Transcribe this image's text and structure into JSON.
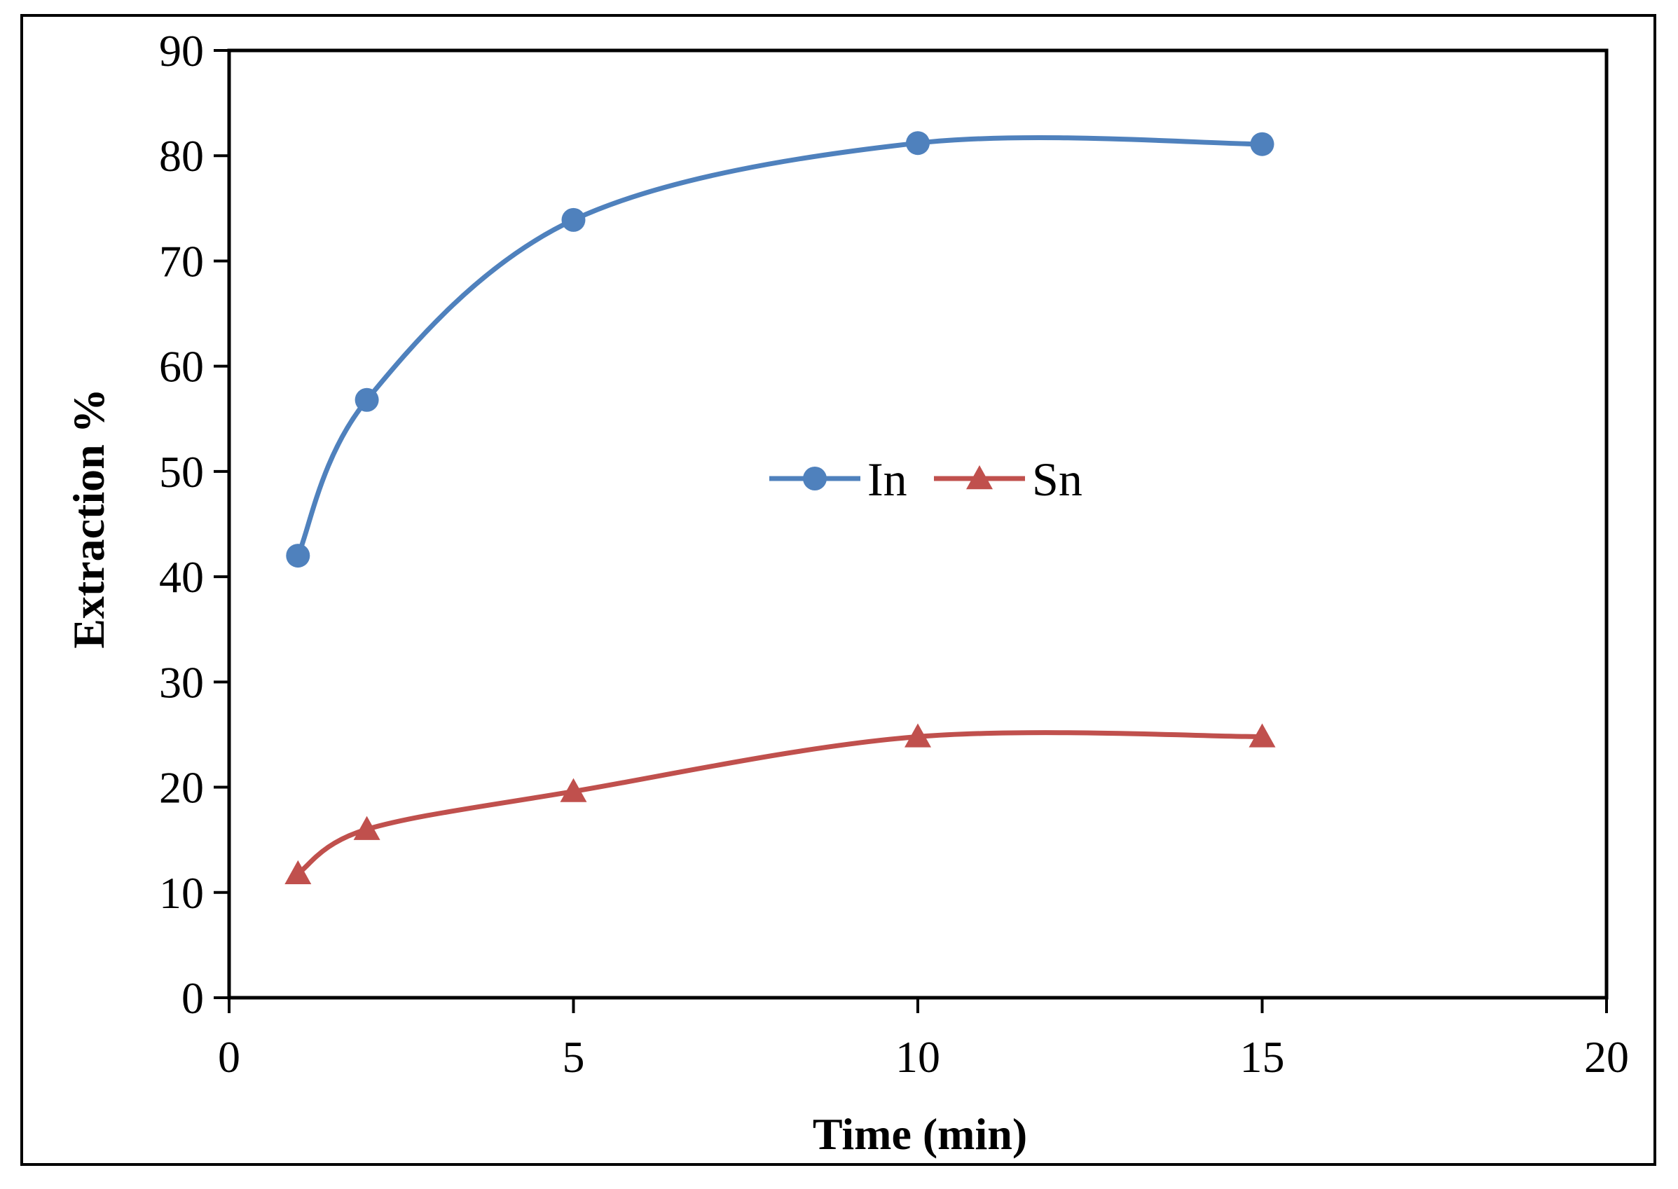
{
  "chart_data": {
    "type": "line",
    "title": "",
    "xlabel": "Time (min)",
    "ylabel": "Extraction %",
    "xlim": [
      0,
      20
    ],
    "ylim": [
      0,
      90
    ],
    "xticks": [
      0,
      5,
      10,
      15,
      20
    ],
    "yticks": [
      0,
      10,
      20,
      30,
      40,
      50,
      60,
      70,
      80,
      90
    ],
    "grid": false,
    "legend_position": "center",
    "series": [
      {
        "name": "In",
        "marker": "circle",
        "color": "#4f81bd",
        "x": [
          1,
          2,
          5,
          10,
          15
        ],
        "y": [
          42,
          56.8,
          73.9,
          81.2,
          81.1
        ]
      },
      {
        "name": "Sn",
        "marker": "triangle",
        "color": "#c0504d",
        "x": [
          1,
          2,
          5,
          10,
          15
        ],
        "y": [
          11.8,
          16,
          19.6,
          24.8,
          24.8
        ]
      }
    ]
  }
}
